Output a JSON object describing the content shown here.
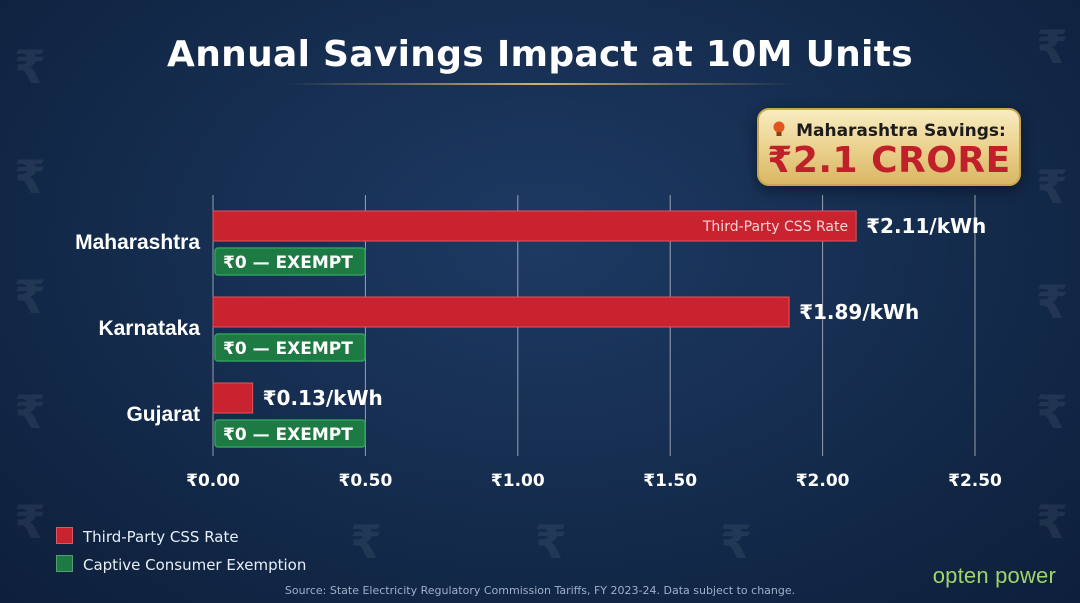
{
  "title": "Annual Savings Impact at 10M Units",
  "callout": {
    "icon": "lightbulb-icon",
    "label": "Maharashtra Savings:",
    "value": "₹2.1 CRORE"
  },
  "legend": [
    {
      "name": "Third-Party CSS Rate",
      "color": "#c8232f"
    },
    {
      "name": "Captive Consumer Exemption",
      "color": "#1e7a43"
    }
  ],
  "source": "Source: State Electricity Regulatory Commission Tariffs, FY 2023-24. Data subject to change.",
  "brand": "opten power",
  "chart_data": {
    "type": "bar",
    "orientation": "horizontal",
    "title": "Annual Savings Impact at 10M Units",
    "categories": [
      "Maharashtra",
      "Karnataka",
      "Gujarat"
    ],
    "xlim": [
      0,
      2.5
    ],
    "xticks": [
      0,
      0.5,
      1.0,
      1.5,
      2.0,
      2.5
    ],
    "xtick_labels": [
      "₹0.00",
      "₹0.50",
      "₹1.00",
      "₹1.50",
      "₹2.00",
      "₹2.50"
    ],
    "grid": "vertical",
    "series": [
      {
        "name": "Third-Party CSS Rate",
        "color": "#c8232f",
        "values": [
          2.11,
          1.89,
          0.13
        ],
        "labels": [
          "₹2.11/kWh",
          "₹1.89/kWh",
          "₹0.13/kWh"
        ],
        "inner_labels": [
          "Third-Party CSS Rate",
          "",
          ""
        ]
      },
      {
        "name": "Captive Consumer Exemption",
        "color": "#1e7a43",
        "values": [
          0,
          0,
          0
        ],
        "labels": [
          "₹0 — EXEMPT",
          "₹0 — EXEMPT",
          "₹0 — EXEMPT"
        ]
      }
    ]
  }
}
